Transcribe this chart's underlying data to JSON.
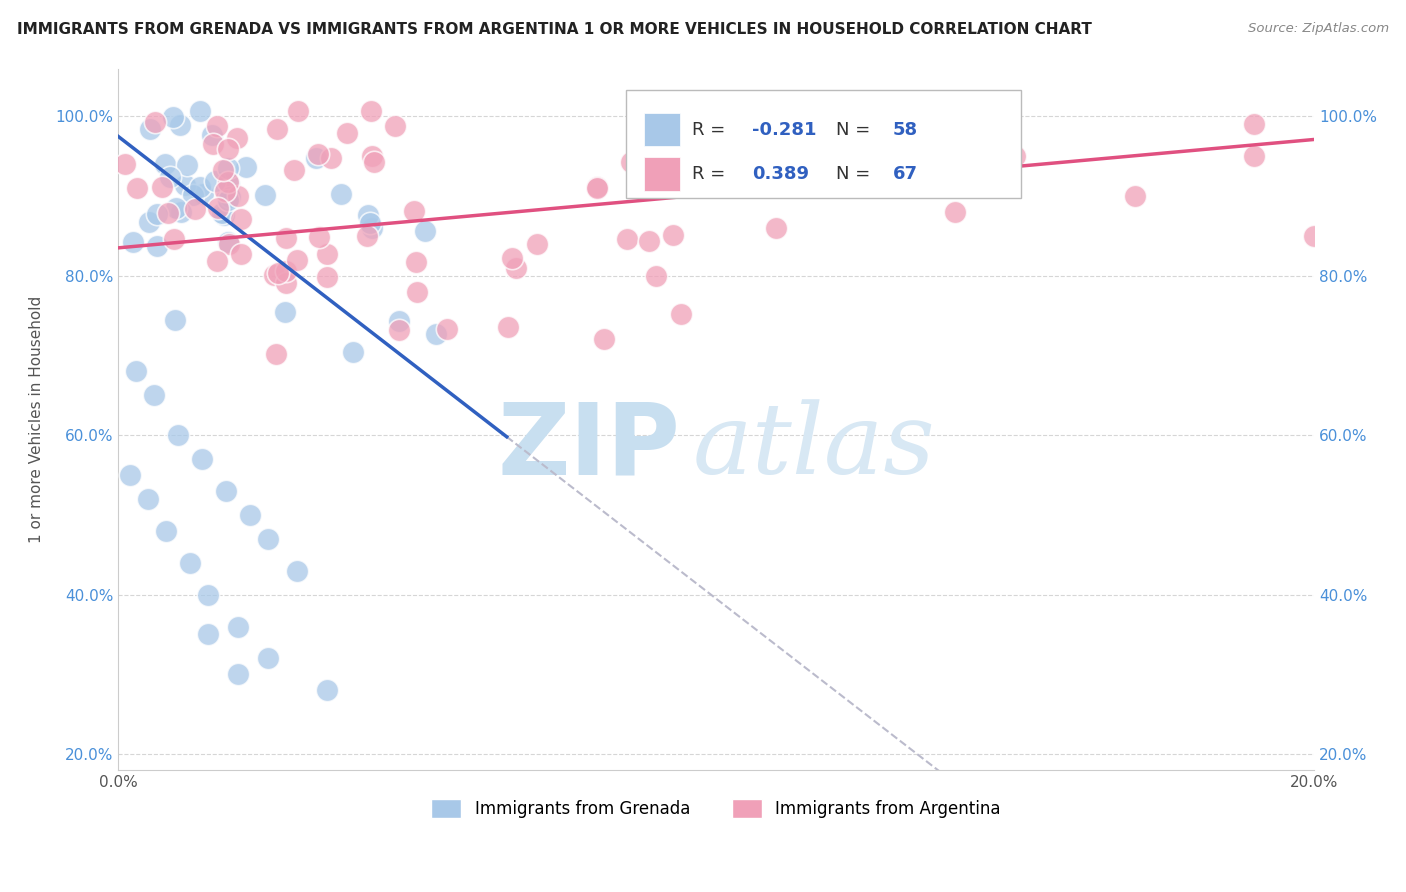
{
  "title": "IMMIGRANTS FROM GRENADA VS IMMIGRANTS FROM ARGENTINA 1 OR MORE VEHICLES IN HOUSEHOLD CORRELATION CHART",
  "source": "Source: ZipAtlas.com",
  "ylabel": "1 or more Vehicles in Household",
  "legend_label_1": "Immigrants from Grenada",
  "legend_label_2": "Immigrants from Argentina",
  "R1": -0.281,
  "N1": 58,
  "R2": 0.389,
  "N2": 67,
  "color1": "#a8c8e8",
  "color2": "#f0a0b8",
  "line_color1": "#3060c0",
  "line_color2": "#e05080",
  "tick_color": "#4a90d9",
  "xmin": 0.0,
  "xmax": 0.2,
  "ymin": 0.18,
  "ymax": 1.06,
  "x_ticks": [
    0.0,
    0.05,
    0.1,
    0.15,
    0.2
  ],
  "x_tick_labels": [
    "0.0%",
    "",
    "",
    "",
    "20.0%"
  ],
  "y_ticks": [
    0.2,
    0.4,
    0.6,
    0.8,
    1.0
  ],
  "y_tick_labels": [
    "20.0%",
    "40.0%",
    "60.0%",
    "80.0%",
    "100.0%"
  ],
  "background_color": "#ffffff",
  "grid_color": "#cccccc",
  "watermark_zip": "ZIP",
  "watermark_atlas": "atlas",
  "watermark_color_zip": "#c8dff0",
  "watermark_color_atlas": "#d8e8f4"
}
